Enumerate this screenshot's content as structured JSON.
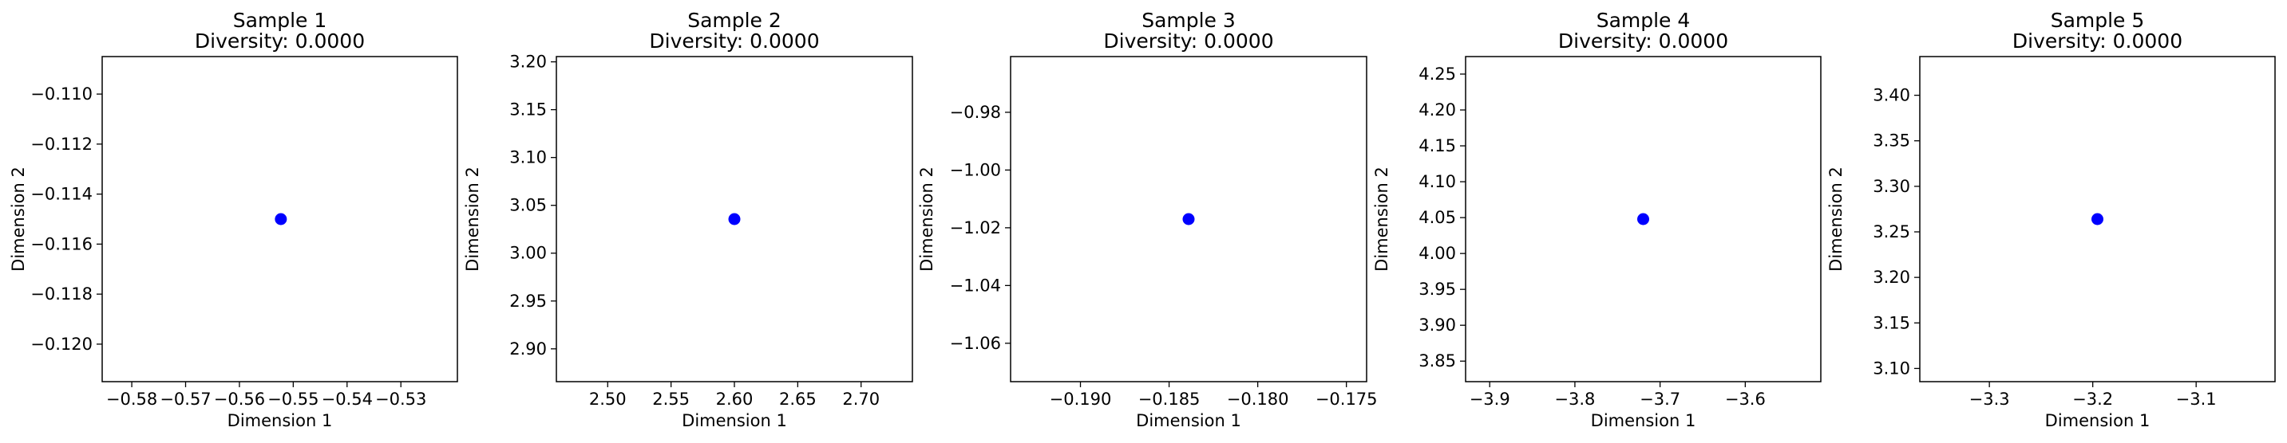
{
  "chart_data": [
    {
      "type": "scatter",
      "title": "Sample 1",
      "subtitle": "Diversity: 0.0000",
      "xlabel": "Dimension 1",
      "ylabel": "Dimension 2",
      "xlim": [
        -0.5855,
        -0.5195
      ],
      "ylim": [
        -0.1215,
        -0.1085
      ],
      "xticks": [
        -0.58,
        -0.57,
        -0.56,
        -0.55,
        -0.54,
        -0.53
      ],
      "xtick_labels": [
        "−0.58",
        "−0.57",
        "−0.56",
        "−0.55",
        "−0.54",
        "−0.53"
      ],
      "yticks": [
        -0.11,
        -0.112,
        -0.114,
        -0.116,
        -0.118,
        -0.12
      ],
      "ytick_labels": [
        "−0.110",
        "−0.112",
        "−0.114",
        "−0.116",
        "−0.118",
        "−0.120"
      ],
      "points": [
        {
          "x": -0.5523,
          "y": -0.115
        }
      ],
      "marker_color": "#0000ff",
      "grid": false
    },
    {
      "type": "scatter",
      "title": "Sample 2",
      "subtitle": "Diversity: 0.0000",
      "xlabel": "Dimension 1",
      "ylabel": "Dimension 2",
      "xlim": [
        2.4595,
        2.7405
      ],
      "ylim": [
        2.8657,
        3.2055
      ],
      "xticks": [
        2.5,
        2.55,
        2.6,
        2.65,
        2.7
      ],
      "xtick_labels": [
        "2.50",
        "2.55",
        "2.60",
        "2.65",
        "2.70"
      ],
      "yticks": [
        3.2,
        3.15,
        3.1,
        3.05,
        3.0,
        2.95,
        2.9
      ],
      "ytick_labels": [
        "3.20",
        "3.15",
        "3.10",
        "3.05",
        "3.00",
        "2.95",
        "2.90"
      ],
      "points": [
        {
          "x": 2.6,
          "y": 3.0356
        }
      ],
      "marker_color": "#0000ff",
      "grid": false
    },
    {
      "type": "scatter",
      "title": "Sample 3",
      "subtitle": "Diversity: 0.0000",
      "xlabel": "Dimension 1",
      "ylabel": "Dimension 2",
      "xlim": [
        -0.19394,
        -0.17386
      ],
      "ylim": [
        -1.0733,
        -0.9607
      ],
      "xticks": [
        -0.19,
        -0.185,
        -0.18,
        -0.175
      ],
      "xtick_labels": [
        "−0.190",
        "−0.185",
        "−0.180",
        "−0.175"
      ],
      "yticks": [
        -0.98,
        -1.0,
        -1.02,
        -1.04,
        -1.06
      ],
      "ytick_labels": [
        "−0.98",
        "−1.00",
        "−1.02",
        "−1.04",
        "−1.06"
      ],
      "points": [
        {
          "x": -0.1839,
          "y": -1.017
        }
      ],
      "marker_color": "#0000ff",
      "grid": false
    },
    {
      "type": "scatter",
      "title": "Sample 4",
      "subtitle": "Diversity: 0.0000",
      "xlabel": "Dimension 1",
      "ylabel": "Dimension 2",
      "xlim": [
        -3.9283,
        -3.5113
      ],
      "ylim": [
        3.8214,
        4.2744
      ],
      "xticks": [
        -3.9,
        -3.8,
        -3.7,
        -3.6
      ],
      "xtick_labels": [
        "−3.9",
        "−3.8",
        "−3.7",
        "−3.6"
      ],
      "yticks": [
        4.25,
        4.2,
        4.15,
        4.1,
        4.05,
        4.0,
        3.95,
        3.9,
        3.85
      ],
      "ytick_labels": [
        "4.25",
        "4.20",
        "4.15",
        "4.10",
        "4.05",
        "4.00",
        "3.95",
        "3.90",
        "3.85"
      ],
      "points": [
        {
          "x": -3.7198,
          "y": 4.0479
        }
      ],
      "marker_color": "#0000ff",
      "grid": false
    },
    {
      "type": "scatter",
      "title": "Sample 5",
      "subtitle": "Diversity: 0.0000",
      "xlabel": "Dimension 1",
      "ylabel": "Dimension 2",
      "xlim": [
        -3.3673,
        -3.0237
      ],
      "ylim": [
        3.0855,
        3.4425
      ],
      "xticks": [
        -3.3,
        -3.2,
        -3.1
      ],
      "xtick_labels": [
        "−3.3",
        "−3.2",
        "−3.1"
      ],
      "yticks": [
        3.4,
        3.35,
        3.3,
        3.25,
        3.2,
        3.15,
        3.1
      ],
      "ytick_labels": [
        "3.40",
        "3.35",
        "3.30",
        "3.25",
        "3.20",
        "3.15",
        "3.10"
      ],
      "points": [
        {
          "x": -3.1955,
          "y": 3.264
        }
      ],
      "marker_color": "#0000ff",
      "grid": false
    }
  ]
}
